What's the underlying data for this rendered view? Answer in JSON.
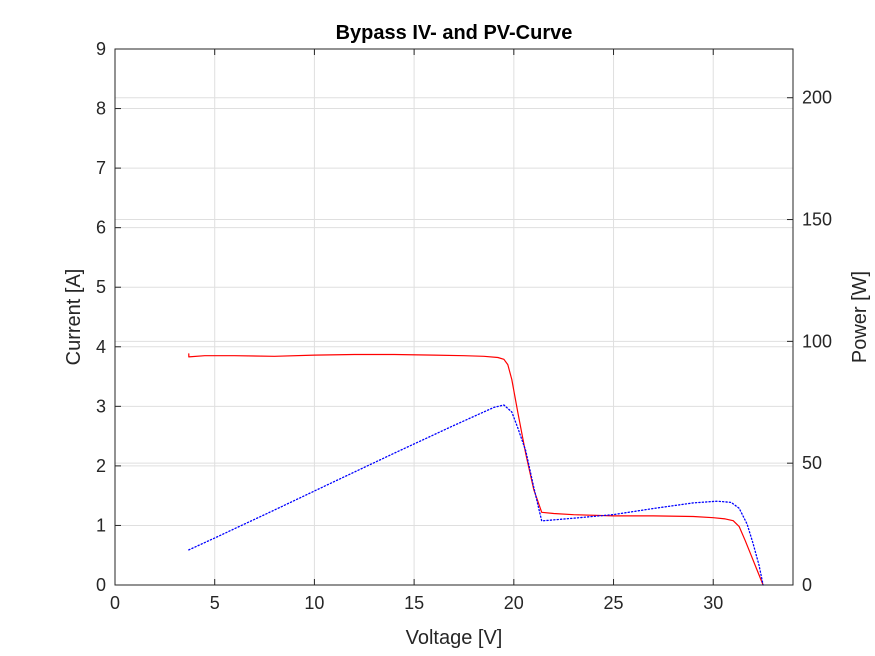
{
  "chart_data": {
    "type": "line",
    "title": "Bypass IV- and PV-Curve",
    "xlabel": "Voltage [V]",
    "ylabel": "Current [A]",
    "y2label": "Power [W]",
    "xlim": [
      0,
      34
    ],
    "ylim": [
      0,
      9
    ],
    "y2lim": [
      0,
      220
    ],
    "xticks": [
      "0",
      "5",
      "10",
      "15",
      "20",
      "25",
      "30"
    ],
    "yticks": [
      "0",
      "1",
      "2",
      "3",
      "4",
      "5",
      "6",
      "7",
      "8",
      "9"
    ],
    "y2ticks": [
      "0",
      "50",
      "100",
      "150",
      "200"
    ],
    "grid": true,
    "series": [
      {
        "axis": "left",
        "color": "#ff0000",
        "style": "solid",
        "x": [
          3.7,
          3.7,
          4.5,
          6,
          8,
          10,
          12,
          14,
          16,
          17.5,
          18.5,
          19.2,
          19.5,
          19.7,
          19.9,
          20.2,
          20.6,
          21.0,
          21.4,
          22,
          23,
          25,
          27,
          29,
          30,
          30.6,
          31.0,
          31.3,
          31.6,
          31.9,
          32.2,
          32.5
        ],
        "y": [
          3.88,
          3.83,
          3.85,
          3.85,
          3.84,
          3.86,
          3.87,
          3.87,
          3.86,
          3.85,
          3.84,
          3.82,
          3.79,
          3.7,
          3.45,
          2.9,
          2.2,
          1.6,
          1.22,
          1.2,
          1.18,
          1.16,
          1.16,
          1.15,
          1.13,
          1.11,
          1.08,
          0.98,
          0.75,
          0.5,
          0.25,
          0.0
        ]
      },
      {
        "axis": "right",
        "color": "#0000ff",
        "style": "dotted",
        "x": [
          3.7,
          5,
          8,
          11,
          14,
          17,
          19.0,
          19.5,
          19.9,
          20.2,
          20.6,
          21.0,
          21.4,
          23,
          25,
          27,
          29,
          30.2,
          30.9,
          31.3,
          31.7,
          32.0,
          32.3,
          32.5
        ],
        "y": [
          14.4,
          19.3,
          30.8,
          42.5,
          54.1,
          65.5,
          72.9,
          73.9,
          71.0,
          64.5,
          55.0,
          40.0,
          26.3,
          27.4,
          28.9,
          31.4,
          33.7,
          34.4,
          33.9,
          31.5,
          25.0,
          17.0,
          8.0,
          0.0
        ]
      }
    ]
  }
}
